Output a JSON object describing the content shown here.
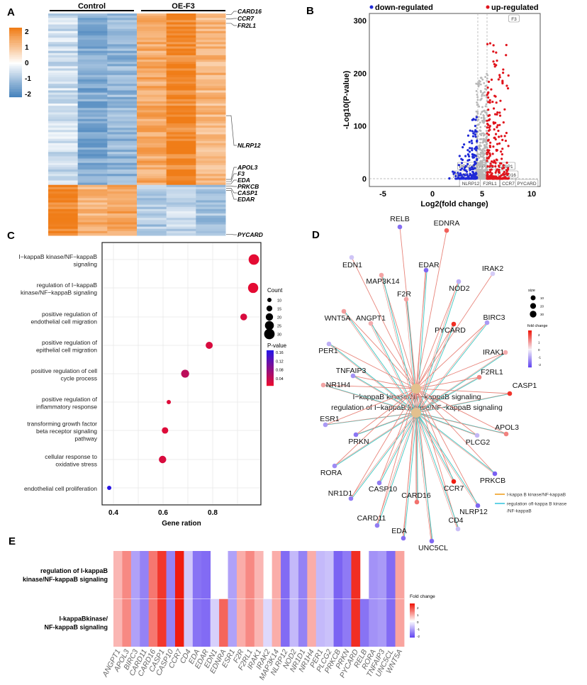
{
  "panels": [
    "A",
    "B",
    "C",
    "D",
    "E"
  ],
  "colors": {
    "heat_low": "#3b7bb8",
    "heat_mid": "#ffffff",
    "heat_high": "#f07d18",
    "fc_low": "#5a3cf0",
    "fc_mid": "#f4f0f8",
    "fc_high": "#f01c10",
    "edge_a": "#e8847a",
    "edge_b": "#3cc6c0",
    "hub": "#e3c08e",
    "down": "#1f2ad6",
    "up": "#e0141c",
    "ns": "#b8b8b8"
  },
  "chart_data": [
    {
      "id": "A",
      "type": "heatmap",
      "groups": [
        {
          "label": "Control",
          "columns": 3
        },
        {
          "label": "OE-F3",
          "columns": 3
        }
      ],
      "clusters": [
        {
          "name": "up in OE-F3",
          "rows": 78,
          "column_means": [
            -0.5,
            -1.3,
            -1.1,
            1.3,
            1.8,
            1.1
          ]
        },
        {
          "name": "down in OE-F3",
          "rows": 23,
          "column_means": [
            1.8,
            1.2,
            1.4,
            -0.8,
            -0.6,
            -0.9
          ]
        }
      ],
      "colorbar": {
        "ticks": [
          "2",
          "1",
          "0",
          "-1",
          "-2"
        ],
        "range": [
          -2,
          2
        ]
      },
      "row_labels": [
        {
          "gene": "CARD16",
          "row": 0
        },
        {
          "gene": "CCR7",
          "row": 2
        },
        {
          "gene": "FR2L1",
          "row": 4
        },
        {
          "gene": "NLRP12",
          "row": 46
        },
        {
          "gene": "APOL3",
          "row": 75
        },
        {
          "gene": "F3",
          "row": 76
        },
        {
          "gene": "EDA",
          "row": 77
        },
        {
          "gene": "PRKCB",
          "row": 78
        },
        {
          "gene": "CASP1",
          "row": 79
        },
        {
          "gene": "EDAR",
          "row": 80
        },
        {
          "gene": "PYCARD",
          "row": 100
        }
      ]
    },
    {
      "id": "B",
      "type": "scatter",
      "legend": [
        {
          "label": "down-regulated",
          "color": "down"
        },
        {
          "label": "up-regulated",
          "color": "up"
        }
      ],
      "xlabel": "Log2(fold change)",
      "ylabel": "-Log10(P-value)",
      "xlim": [
        -6.3,
        10.8
      ],
      "ylim": [
        -13,
        310
      ],
      "xticks": [
        "-5",
        "0",
        "5",
        "10"
      ],
      "xtick_values": [
        -5,
        0,
        5,
        10
      ],
      "yticks": [
        "0",
        "100",
        "200",
        "300"
      ],
      "ytick_values": [
        0,
        100,
        200,
        300
      ],
      "thresholds": {
        "x": [
          4.57,
          5.5
        ],
        "y": 0
      },
      "counts": {
        "down": 180,
        "up": 260,
        "ns": 420
      },
      "labeled_points": [
        {
          "gene": "F3",
          "x": 7.8,
          "y": 307
        },
        {
          "gene": "PRKCB",
          "x": 3.6,
          "y": 20
        },
        {
          "gene": "APOL3",
          "x": 5.6,
          "y": 20
        },
        {
          "gene": "CASP1",
          "x": 6.3,
          "y": 15
        },
        {
          "gene": "EDAR",
          "x": 3.4,
          "y": 5
        },
        {
          "gene": "EDA",
          "x": 4.9,
          "y": 5
        },
        {
          "gene": "CARD16",
          "x": 6.5,
          "y": 8
        },
        {
          "gene": "NLRP12",
          "x": 4.3,
          "y": 1
        },
        {
          "gene": "F2RL1",
          "x": 5.9,
          "y": 1
        },
        {
          "gene": "CCR7",
          "x": 6.7,
          "y": 1
        },
        {
          "gene": "PYCARD",
          "x": 7.7,
          "y": 1
        }
      ]
    },
    {
      "id": "C",
      "type": "scatter",
      "xlabel": "Gene ration",
      "xlim": [
        0.355,
        0.995
      ],
      "xticks": [
        "0.4",
        "0.6",
        "0.8"
      ],
      "xtick_values": [
        0.4,
        0.6,
        0.8
      ],
      "terms": [
        {
          "label": [
            "I−kappaB kinase/NF−kappaB",
            "signaling"
          ],
          "ratio": 0.966,
          "count": 30,
          "p": 0.01
        },
        {
          "label": [
            "regulation of I−kappaB",
            "kinase/NF−kappaB signaling"
          ],
          "ratio": 0.963,
          "count": 29,
          "p": 0.01
        },
        {
          "label": [
            "positive regulation of",
            "endothelial cell migration"
          ],
          "ratio": 0.925,
          "count": 18,
          "p": 0.02
        },
        {
          "label": [
            "positive regulation of",
            "epithelial cell migration"
          ],
          "ratio": 0.786,
          "count": 19,
          "p": 0.02
        },
        {
          "label": [
            "positive regulation of cell",
            "cycle process"
          ],
          "ratio": 0.689,
          "count": 22,
          "p": 0.045
        },
        {
          "label": [
            "positive regulation of",
            "inflammatory response"
          ],
          "ratio": 0.623,
          "count": 10,
          "p": 0.015
        },
        {
          "label": [
            "transforming growth factor",
            "beta receptor signaling",
            "pathway"
          ],
          "ratio": 0.608,
          "count": 17,
          "p": 0.015
        },
        {
          "label": [
            "cellular response to",
            "oxidative stress"
          ],
          "ratio": 0.598,
          "count": 20,
          "p": 0.02
        },
        {
          "label": [
            "endothelial cell proliferation"
          ],
          "ratio": 0.383,
          "count": 10,
          "p": 0.17
        }
      ],
      "size_legend": {
        "title": "Count",
        "values": [
          "10",
          "15",
          "20",
          "25",
          "30"
        ]
      },
      "color_legend": {
        "title": "P-value",
        "ticks": [
          "0.16",
          "0.12",
          "0.08",
          "0.04"
        ]
      }
    },
    {
      "id": "D",
      "type": "network",
      "hubs": [
        "I−kappaB kinase/NF−kappaB signaling",
        "regulation of I−kappaB kinase/NF−kappaB signaling"
      ],
      "size_legend": {
        "title": "size",
        "values": [
          "10",
          "20",
          "30"
        ]
      },
      "color_legend": {
        "title": "fold change",
        "ticks": [
          "2",
          "1",
          "0",
          "-1",
          "-2"
        ]
      },
      "edge_legend": [
        {
          "label": "I-kappa B kinase/NF-kappaB",
          "color": "#f0a020"
        },
        {
          "label": [
            "regulation ofI-kappa B kinase",
            "/NF-kappaB"
          ],
          "color": "#3cc6e0"
        }
      ]
    },
    {
      "id": "E",
      "type": "heatmap",
      "rows": [
        [
          "regulation of I-kappaB",
          "kinase/NF-kappaB signaling"
        ],
        [
          "I-kappaBkinase/",
          "NF-kappaB signaling"
        ]
      ],
      "legend_title": "Fold change",
      "legend_ticks": [
        "2",
        "1",
        "0",
        "-1",
        "-2"
      ],
      "genes": [
        {
          "gene": "ANGPT1",
          "fc": 0.8,
          "rows": [
            1,
            1
          ]
        },
        {
          "gene": "APOL3",
          "fc": 1.3,
          "rows": [
            1,
            1
          ]
        },
        {
          "gene": "BIRC3",
          "fc": -1.2,
          "rows": [
            1,
            1
          ]
        },
        {
          "gene": "CARD11",
          "fc": -1.6,
          "rows": [
            1,
            1
          ]
        },
        {
          "gene": "CARD16",
          "fc": 1.5,
          "rows": [
            1,
            1
          ]
        },
        {
          "gene": "CASP1",
          "fc": 2.2,
          "rows": [
            1,
            1
          ]
        },
        {
          "gene": "CASP10",
          "fc": -1.6,
          "rows": [
            1,
            1
          ]
        },
        {
          "gene": "CCR7",
          "fc": 2.5,
          "rows": [
            1,
            1
          ]
        },
        {
          "gene": "CD4",
          "fc": -0.7,
          "rows": [
            1,
            1
          ]
        },
        {
          "gene": "EDA",
          "fc": -1.8,
          "rows": [
            1,
            1
          ]
        },
        {
          "gene": "EDAR",
          "fc": -1.9,
          "rows": [
            1,
            1
          ]
        },
        {
          "gene": "EDN1",
          "fc": -0.6,
          "rows": [
            0,
            1
          ]
        },
        {
          "gene": "EDNRA",
          "fc": 1.7,
          "rows": [
            0,
            1
          ]
        },
        {
          "gene": "ESR1",
          "fc": -1.2,
          "rows": [
            1,
            1
          ]
        },
        {
          "gene": "F2R",
          "fc": 0.9,
          "rows": [
            1,
            1
          ]
        },
        {
          "gene": "F2RL1",
          "fc": 1.3,
          "rows": [
            1,
            1
          ]
        },
        {
          "gene": "IRAK1",
          "fc": 0.8,
          "rows": [
            1,
            1
          ]
        },
        {
          "gene": "IRAK2",
          "fc": -0.5,
          "rows": [
            0,
            1
          ]
        },
        {
          "gene": "MAP3K14",
          "fc": 0.9,
          "rows": [
            1,
            1
          ]
        },
        {
          "gene": "NLRP12",
          "fc": -1.9,
          "rows": [
            1,
            1
          ]
        },
        {
          "gene": "NOD2",
          "fc": -0.9,
          "rows": [
            1,
            1
          ]
        },
        {
          "gene": "NR1D1",
          "fc": -1.6,
          "rows": [
            1,
            1
          ]
        },
        {
          "gene": "NR1H4",
          "fc": 0.9,
          "rows": [
            1,
            1
          ]
        },
        {
          "gene": "PER1",
          "fc": -0.9,
          "rows": [
            1,
            1
          ]
        },
        {
          "gene": "PLCG2",
          "fc": -0.8,
          "rows": [
            1,
            1
          ]
        },
        {
          "gene": "PRKCB",
          "fc": -2.0,
          "rows": [
            1,
            1
          ]
        },
        {
          "gene": "PRKN",
          "fc": -1.7,
          "rows": [
            1,
            1
          ]
        },
        {
          "gene": "PYCARD",
          "fc": 2.3,
          "rows": [
            1,
            1
          ]
        },
        {
          "gene": "RELB",
          "fc": -1.8,
          "rows": [
            0,
            1
          ]
        },
        {
          "gene": "RORA",
          "fc": -1.4,
          "rows": [
            1,
            1
          ]
        },
        {
          "gene": "TNFAIP3",
          "fc": -1.3,
          "rows": [
            1,
            1
          ]
        },
        {
          "gene": "UNC5CL",
          "fc": -1.9,
          "rows": [
            1,
            1
          ]
        },
        {
          "gene": "WNT5A",
          "fc": 1.0,
          "rows": [
            1,
            1
          ]
        }
      ]
    }
  ]
}
